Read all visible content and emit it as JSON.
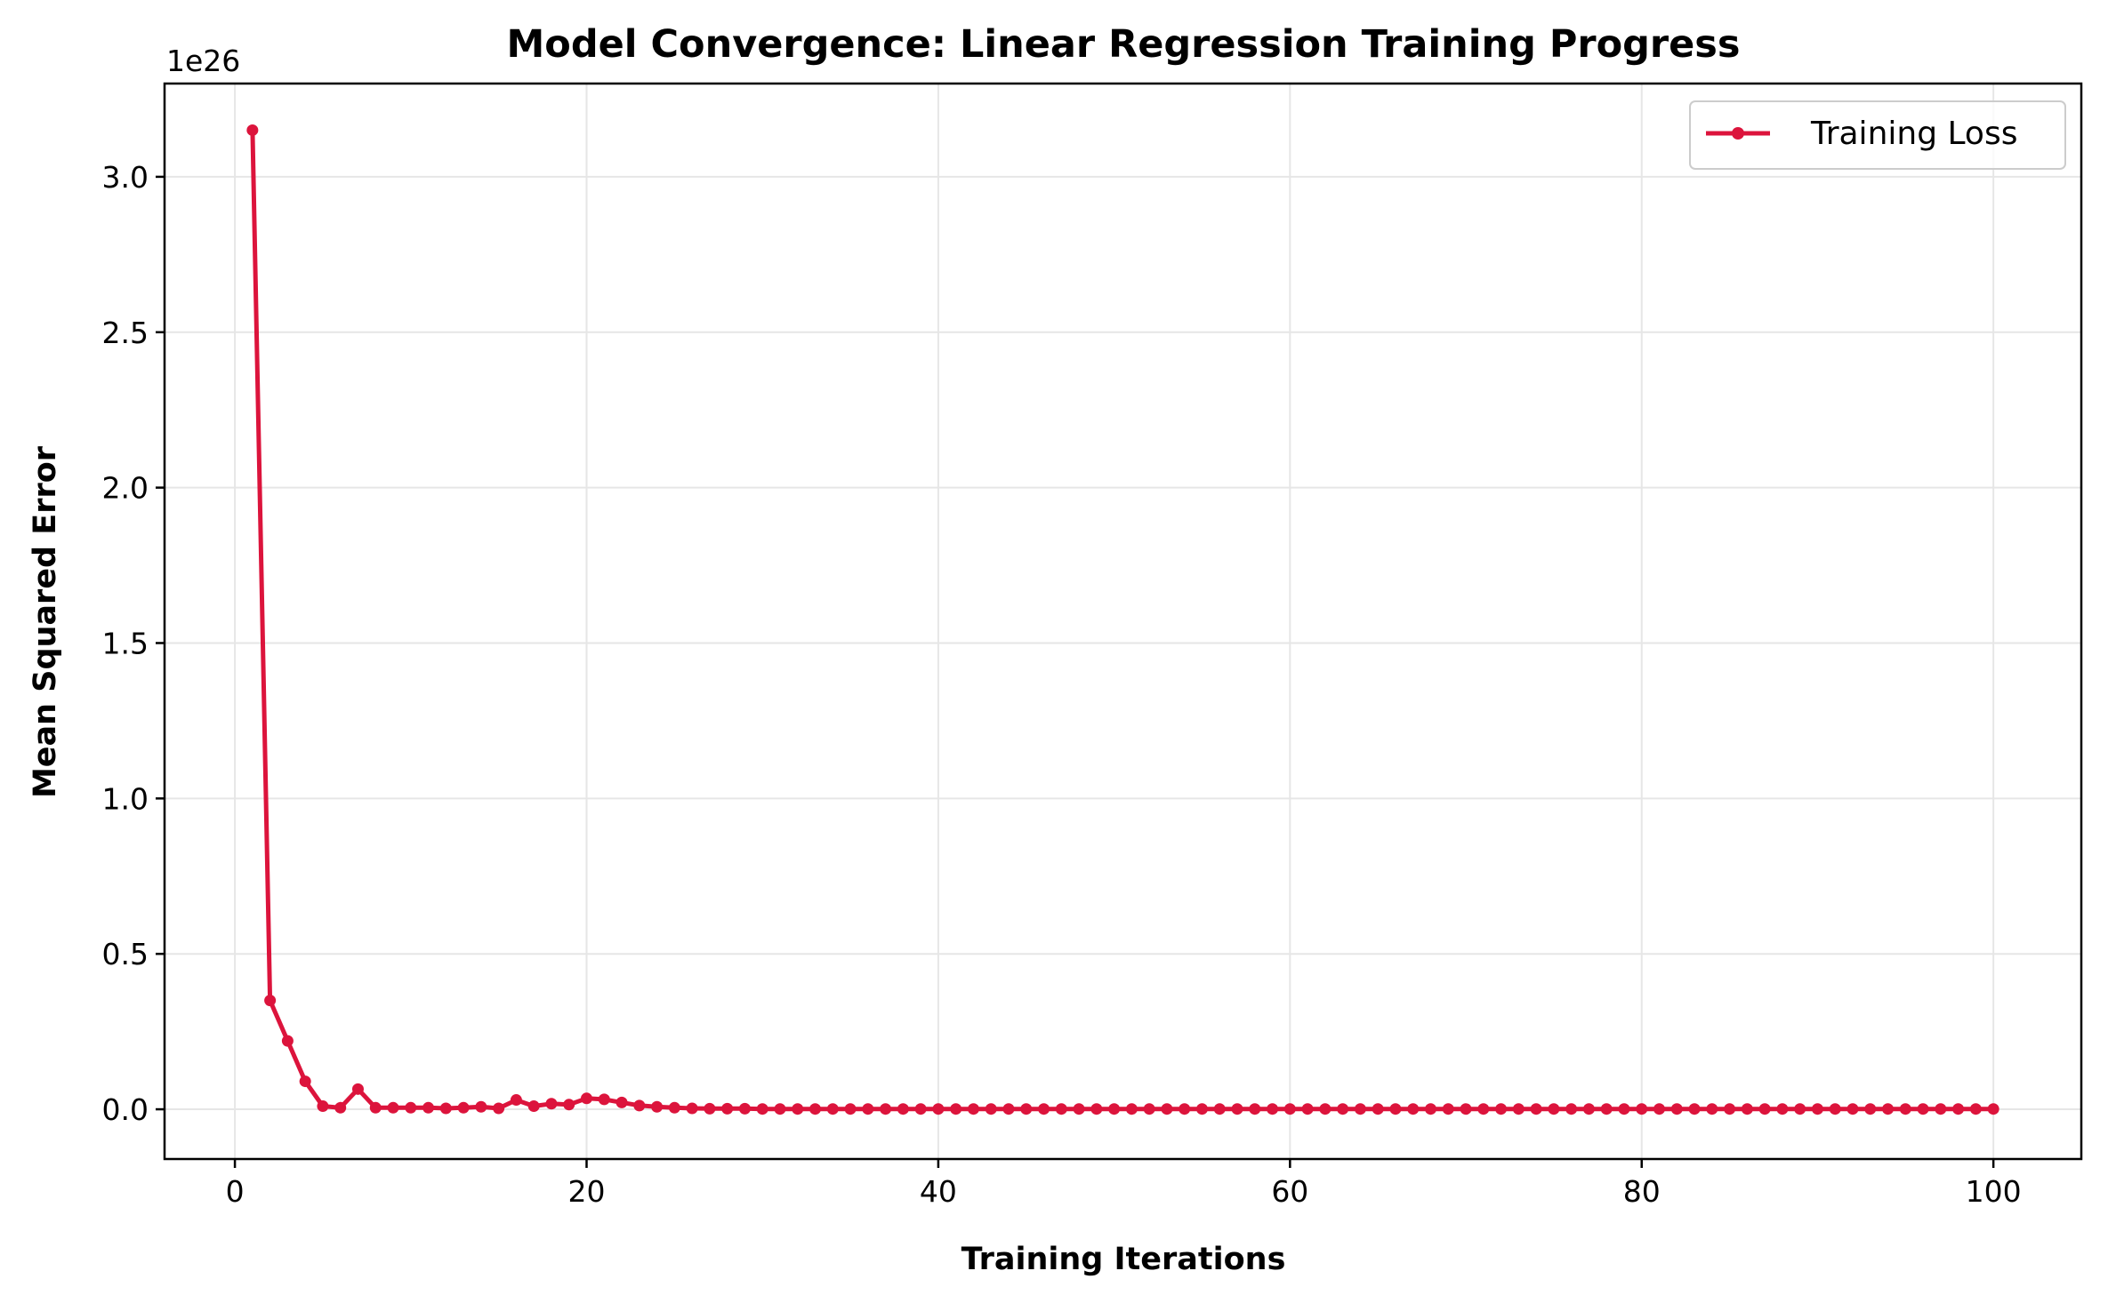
{
  "chart_data": {
    "type": "line",
    "title": "Model Convergence: Linear Regression Training Progress",
    "xlabel": "Training Iterations",
    "ylabel": "Mean Squared Error",
    "y_scale_label": "1e26",
    "xlim": [
      -4,
      105
    ],
    "ylim": [
      -0.16,
      3.3
    ],
    "x_ticks": [
      0,
      20,
      40,
      60,
      80,
      100
    ],
    "x_tick_labels": [
      "0",
      "20",
      "40",
      "60",
      "80",
      "100"
    ],
    "y_ticks": [
      0.0,
      0.5,
      1.0,
      1.5,
      2.0,
      2.5,
      3.0
    ],
    "y_tick_labels": [
      "0.0",
      "0.5",
      "1.0",
      "1.5",
      "2.0",
      "2.5",
      "3.0"
    ],
    "grid": true,
    "legend_position": "top-right",
    "colors": {
      "series": "#dc143c",
      "grid": "#e6e6e6",
      "axes": "#000000"
    },
    "series": [
      {
        "name": "Training Loss",
        "x": [
          1,
          2,
          3,
          4,
          5,
          6,
          7,
          8,
          9,
          10,
          11,
          12,
          13,
          14,
          15,
          16,
          17,
          18,
          19,
          20,
          21,
          22,
          23,
          24,
          25,
          26,
          27,
          28,
          29,
          30,
          31,
          32,
          33,
          34,
          35,
          36,
          37,
          38,
          39,
          40,
          41,
          42,
          43,
          44,
          45,
          46,
          47,
          48,
          49,
          50,
          51,
          52,
          53,
          54,
          55,
          56,
          57,
          58,
          59,
          60,
          61,
          62,
          63,
          64,
          65,
          66,
          67,
          68,
          69,
          70,
          71,
          72,
          73,
          74,
          75,
          76,
          77,
          78,
          79,
          80,
          81,
          82,
          83,
          84,
          85,
          86,
          87,
          88,
          89,
          90,
          91,
          92,
          93,
          94,
          95,
          96,
          97,
          98,
          99,
          100
        ],
        "y": [
          3.15,
          0.35,
          0.22,
          0.09,
          0.01,
          0.005,
          0.065,
          0.005,
          0.005,
          0.005,
          0.005,
          0.003,
          0.005,
          0.008,
          0.003,
          0.03,
          0.01,
          0.018,
          0.015,
          0.035,
          0.032,
          0.022,
          0.012,
          0.008,
          0.005,
          0.003,
          0.002,
          0.002,
          0.002,
          0.001,
          0.001,
          0.001,
          0.001,
          0.001,
          0.001,
          0.001,
          0.001,
          0.001,
          0.001,
          0.001,
          0.001,
          0.001,
          0.001,
          0.001,
          0.001,
          0.001,
          0.001,
          0.001,
          0.001,
          0.001,
          0.001,
          0.001,
          0.001,
          0.001,
          0.001,
          0.001,
          0.001,
          0.001,
          0.001,
          0.001,
          0.001,
          0.001,
          0.001,
          0.001,
          0.001,
          0.001,
          0.001,
          0.001,
          0.001,
          0.001,
          0.001,
          0.001,
          0.001,
          0.001,
          0.001,
          0.001,
          0.001,
          0.001,
          0.001,
          0.001,
          0.001,
          0.001,
          0.001,
          0.001,
          0.001,
          0.001,
          0.001,
          0.001,
          0.001,
          0.001,
          0.001,
          0.001,
          0.001,
          0.001,
          0.001,
          0.001,
          0.001,
          0.001,
          0.001,
          0.001
        ]
      }
    ]
  }
}
